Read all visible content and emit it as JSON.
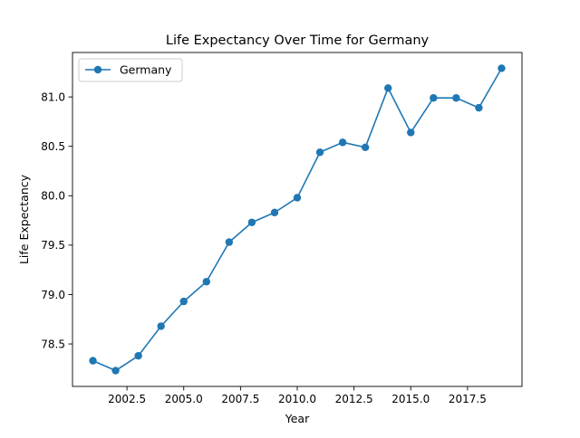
{
  "chart_data": {
    "type": "line",
    "title": "Life Expectancy Over Time for Germany",
    "xlabel": "Year",
    "ylabel": "Life Expectancy",
    "xlim": [
      2000.1,
      2019.9
    ],
    "ylim": [
      78.07,
      81.45
    ],
    "xticks": [
      2002.5,
      2005.0,
      2007.5,
      2010.0,
      2012.5,
      2015.0,
      2017.5
    ],
    "xtick_labels": [
      "2002.5",
      "2005.0",
      "2007.5",
      "2010.0",
      "2012.5",
      "2015.0",
      "2017.5"
    ],
    "yticks": [
      78.5,
      79.0,
      79.5,
      80.0,
      80.5,
      81.0
    ],
    "ytick_labels": [
      "78.5",
      "79.0",
      "79.5",
      "80.0",
      "80.5",
      "81.0"
    ],
    "grid": false,
    "legend_position": "upper-left",
    "series": [
      {
        "name": "Germany",
        "color": "#1f77b4",
        "marker": "circle",
        "x": [
          2001,
          2002,
          2003,
          2004,
          2005,
          2006,
          2007,
          2008,
          2009,
          2010,
          2011,
          2012,
          2013,
          2014,
          2015,
          2016,
          2017,
          2018,
          2019
        ],
        "y": [
          78.33,
          78.23,
          78.38,
          78.68,
          78.93,
          79.13,
          79.53,
          79.73,
          79.83,
          79.98,
          80.44,
          80.54,
          80.49,
          81.09,
          80.64,
          80.99,
          80.99,
          80.89,
          81.29
        ]
      }
    ]
  }
}
